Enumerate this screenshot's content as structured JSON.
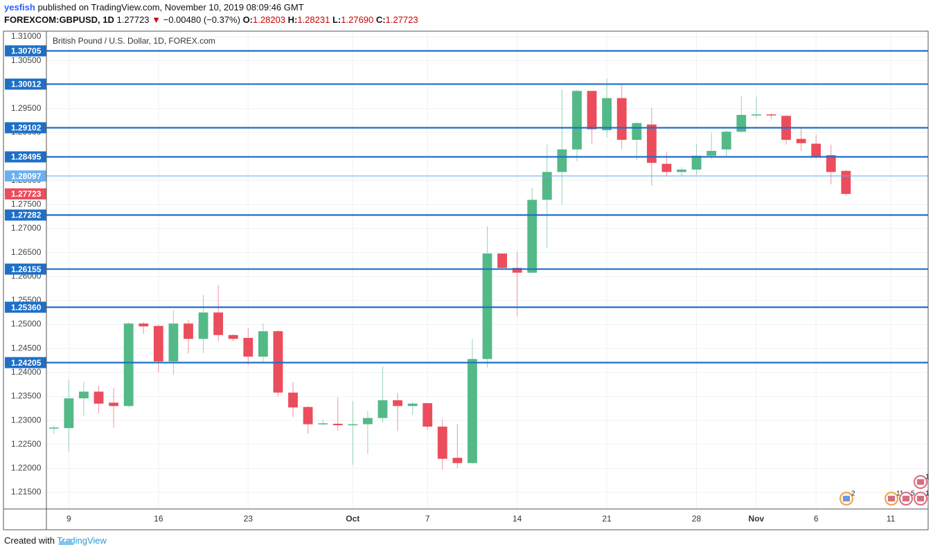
{
  "header": {
    "author": "yesfish",
    "published": "published on TradingView.com, November 10, 2019 08:09:46 GMT",
    "symbol": "FOREXCOM:GBPUSD, 1D",
    "last": "1.27723",
    "change": "−0.00480 (−0.37%)",
    "ohlc": [
      "O:",
      "1.28203",
      "H:",
      "1.28231",
      "L:",
      "1.27690",
      "C:",
      "1.27723"
    ]
  },
  "footer": {
    "prefix": "Created with",
    "brand": "TradingView"
  },
  "chart_data": {
    "type": "candlestick",
    "title": "British Pound / U.S. Dollar, 1D, FOREX.com",
    "up_color": "#53b987",
    "down_color": "#eb4d5c",
    "grid": true,
    "ylim": [
      1.21153,
      1.31116
    ],
    "yticks": [
      {
        "value": 1.31,
        "label": "1.31000"
      },
      {
        "value": 1.305,
        "label": "1.30500"
      },
      {
        "value": 1.3,
        "label": "1.30000"
      },
      {
        "value": 1.295,
        "label": "1.29500"
      },
      {
        "value": 1.29,
        "label": "1.29000"
      },
      {
        "value": 1.285,
        "label": "1.28500"
      },
      {
        "value": 1.28,
        "label": "1.28000"
      },
      {
        "value": 1.275,
        "label": "1.27500"
      },
      {
        "value": 1.27,
        "label": "1.27000"
      },
      {
        "value": 1.265,
        "label": "1.26500"
      },
      {
        "value": 1.26,
        "label": "1.26000"
      },
      {
        "value": 1.255,
        "label": "1.25500"
      },
      {
        "value": 1.25,
        "label": "1.25000"
      },
      {
        "value": 1.245,
        "label": "1.24500"
      },
      {
        "value": 1.24,
        "label": "1.24000"
      },
      {
        "value": 1.235,
        "label": "1.23500"
      },
      {
        "value": 1.23,
        "label": "1.23000"
      },
      {
        "value": 1.225,
        "label": "1.22500"
      },
      {
        "value": 1.22,
        "label": "1.22000"
      },
      {
        "value": 1.215,
        "label": "1.21500"
      }
    ],
    "categories": [
      null,
      "9",
      null,
      null,
      null,
      null,
      null,
      "16",
      null,
      null,
      null,
      null,
      null,
      "23",
      null,
      null,
      null,
      null,
      null,
      null,
      "Oct",
      null,
      null,
      null,
      null,
      "7",
      null,
      null,
      null,
      null,
      null,
      "14",
      null,
      null,
      null,
      null,
      null,
      "21",
      null,
      null,
      null,
      null,
      null,
      "28",
      null,
      null,
      null,
      "Nov",
      null,
      null,
      null,
      "6",
      null,
      null,
      null,
      null,
      "11",
      null,
      null
    ],
    "open": [
      1.2283,
      1.2284,
      1.2346,
      1.236,
      1.2337,
      1.233,
      1.2502,
      1.2497,
      1.2423,
      1.2502,
      1.247,
      1.2525,
      1.2478,
      1.2472,
      1.2433,
      1.2486,
      1.2358,
      1.2328,
      1.2292,
      1.2293,
      1.229,
      1.2292,
      1.2305,
      1.2342,
      1.233,
      1.2336,
      1.2287,
      1.2222,
      1.2211,
      1.2428,
      1.2648,
      1.2618,
      1.2608,
      1.276,
      1.2818,
      1.2865,
      1.2987,
      1.2905,
      1.2972,
      1.2885,
      1.2917,
      1.2835,
      1.2818,
      1.2823,
      1.2852,
      1.2865,
      1.2902,
      1.2937,
      1.2938,
      1.2935,
      1.2887,
      1.2877,
      1.2853,
      1.28203,
      null,
      null,
      null,
      null,
      null
    ],
    "high": [
      1.229,
      1.2385,
      1.238,
      1.2372,
      1.2368,
      1.2505,
      1.2505,
      1.25,
      1.253,
      1.251,
      1.2562,
      1.2582,
      1.248,
      1.2492,
      1.2502,
      1.2488,
      1.238,
      1.233,
      1.2302,
      1.2348,
      1.234,
      1.232,
      1.2412,
      1.2357,
      1.2338,
      1.2336,
      1.2302,
      1.2292,
      1.247,
      1.2705,
      1.2648,
      1.265,
      1.2785,
      1.2875,
      1.299,
      1.299,
      1.2987,
      1.3013,
      1.3,
      1.2922,
      1.2952,
      1.286,
      1.2828,
      1.2877,
      1.29,
      1.2905,
      1.2977,
      1.2975,
      1.294,
      1.2937,
      1.2912,
      1.2895,
      1.2875,
      1.28231,
      null,
      null,
      null,
      null,
      null
    ],
    "low": [
      1.2272,
      1.2235,
      1.231,
      1.2315,
      1.2285,
      1.2328,
      1.248,
      1.24,
      1.2395,
      1.244,
      1.244,
      1.2465,
      1.2465,
      1.2415,
      1.242,
      1.235,
      1.2307,
      1.2272,
      1.229,
      1.2278,
      1.2207,
      1.223,
      1.2295,
      1.2278,
      1.2312,
      1.228,
      1.2197,
      1.22,
      1.221,
      1.241,
      1.2615,
      1.2518,
      1.2608,
      1.266,
      1.275,
      1.284,
      1.2877,
      1.289,
      1.2865,
      1.2843,
      1.279,
      1.2808,
      1.281,
      1.2812,
      1.2845,
      1.2848,
      1.29,
      1.293,
      1.2928,
      1.2875,
      1.2862,
      1.2845,
      1.2792,
      1.2769,
      null,
      null,
      null,
      null,
      null
    ],
    "close": [
      1.2285,
      1.2346,
      1.236,
      1.2335,
      1.233,
      1.2502,
      1.2496,
      1.2423,
      1.2502,
      1.247,
      1.2525,
      1.2478,
      1.247,
      1.2433,
      1.2486,
      1.2358,
      1.2327,
      1.2292,
      1.2294,
      1.229,
      1.2292,
      1.2305,
      1.2342,
      1.233,
      1.2335,
      1.2287,
      1.222,
      1.2211,
      1.2428,
      1.2648,
      1.2618,
      1.2608,
      1.276,
      1.2818,
      1.2865,
      1.2987,
      1.2907,
      1.2972,
      1.2885,
      1.292,
      1.2837,
      1.2818,
      1.2823,
      1.2852,
      1.2862,
      1.2902,
      1.2937,
      1.2938,
      1.2936,
      1.2885,
      1.2878,
      1.285,
      1.2818,
      1.27723,
      null,
      null,
      null,
      null,
      null
    ],
    "levels": [
      1.30705,
      1.30012,
      1.29102,
      1.28495,
      {
        "value": 1.28097,
        "label": "1.28097",
        "style": "light"
      },
      1.27282,
      1.26155,
      {
        "value": 1.2536,
        "label": "1.25360"
      },
      1.24205
    ],
    "level_color": "#1e6fc7",
    "light_level_color": "#6ab0f0",
    "current_price": 1.27723,
    "events": [
      "2",
      "11",
      "5",
      "1",
      "1"
    ]
  }
}
